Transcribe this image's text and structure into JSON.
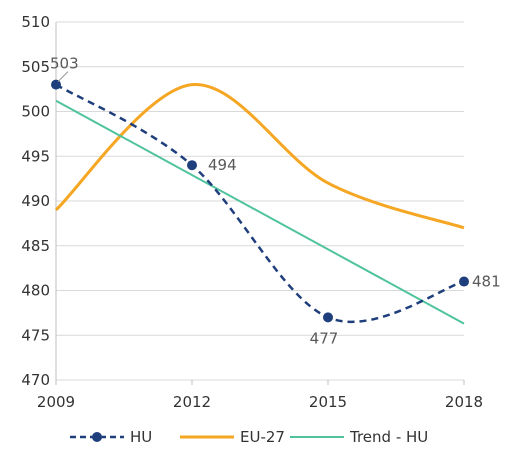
{
  "chart_data": {
    "type": "line",
    "x": [
      2009,
      2012,
      2015,
      2018
    ],
    "xlim": [
      2009,
      2018
    ],
    "ylim": [
      470,
      510
    ],
    "y_ticks": [
      470,
      475,
      480,
      485,
      490,
      495,
      500,
      505,
      510
    ],
    "x_ticks": [
      2009,
      2012,
      2015,
      2018
    ],
    "grid": "horizontal",
    "legend_position": "bottom",
    "series": [
      {
        "name": "HU",
        "values": [
          503,
          494,
          477,
          481
        ],
        "color": "#1f3e7c",
        "style": "dashed-smooth-with-markers",
        "data_labels": [
          "503",
          "494",
          "477",
          "481"
        ]
      },
      {
        "name": "EU-27",
        "values": [
          489,
          503,
          492,
          487
        ],
        "color": "#f5a623",
        "style": "solid-smooth"
      },
      {
        "name": "Trend - HU",
        "values": [
          501.2,
          493.0,
          484.7,
          476.3
        ],
        "color": "#4fc39e",
        "style": "solid-linear"
      }
    ]
  }
}
